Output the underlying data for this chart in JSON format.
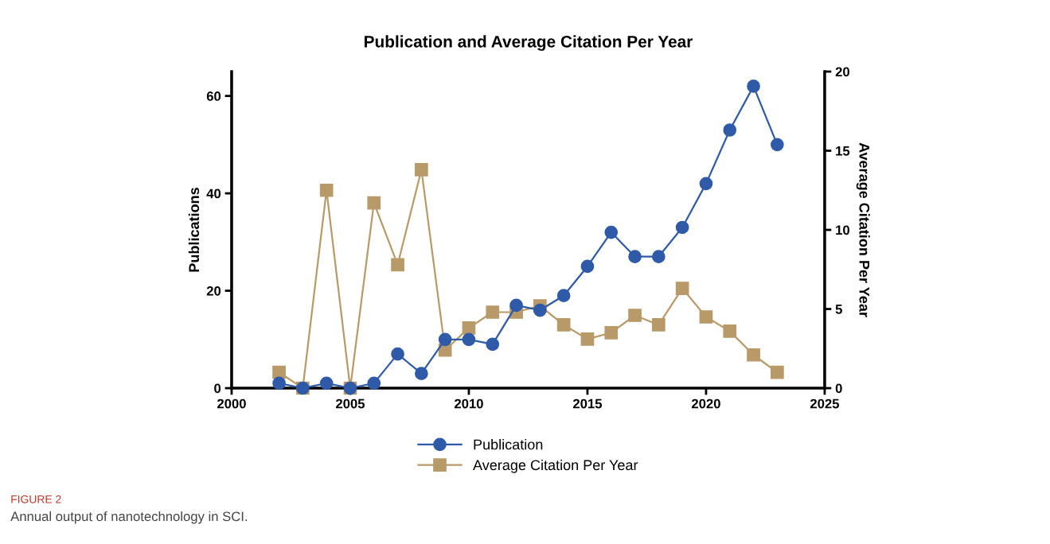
{
  "chart_data": {
    "type": "line",
    "title": "Publication and Average Citation Per Year",
    "ylabel": "Publications",
    "y2label": "Average Citation Per Year",
    "x": [
      2002,
      2003,
      2004,
      2005,
      2006,
      2007,
      2008,
      2009,
      2010,
      2011,
      2012,
      2013,
      2014,
      2015,
      2016,
      2017,
      2018,
      2019,
      2020,
      2021,
      2022,
      2023
    ],
    "series": [
      {
        "name": "Publication",
        "color": "#2f5aa8",
        "marker": "circle",
        "values": [
          1,
          0,
          1,
          0,
          1,
          7,
          3,
          10,
          10,
          9,
          17,
          16,
          19,
          25,
          32,
          27,
          27,
          33,
          42,
          53,
          62,
          50
        ]
      },
      {
        "name": "Average Citation Per Year",
        "color": "#b89a68",
        "marker": "square",
        "axis": "y2",
        "values": [
          1.0,
          0,
          12.5,
          0,
          11.7,
          7.8,
          13.8,
          2.4,
          3.8,
          4.8,
          4.8,
          5.2,
          4.0,
          3.1,
          3.5,
          4.6,
          4.0,
          6.3,
          4.5,
          3.6,
          2.1,
          1.0
        ]
      }
    ],
    "xlim": [
      2000,
      2025
    ],
    "xticks": [
      2000,
      2005,
      2010,
      2015,
      2020,
      2025
    ],
    "ylim": [
      0,
      65
    ],
    "yticks": [
      0,
      20,
      40,
      60
    ],
    "y2lim": [
      0,
      20
    ],
    "y2ticks": [
      0,
      5,
      10,
      15,
      20
    ],
    "grid": false,
    "legend": "bottom",
    "annotations": [
      "FIGURE 2",
      "Annual output of nanotechnology in SCI."
    ]
  }
}
